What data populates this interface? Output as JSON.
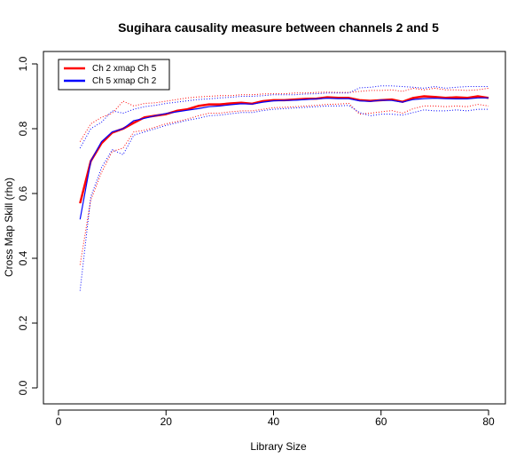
{
  "chart_data": {
    "type": "line",
    "title": "Sugihara causality measure between channels  2 and 5",
    "xlabel": "Library Size",
    "ylabel": "Cross Map Skill (rho)",
    "xlim": [
      0,
      80
    ],
    "ylim": [
      0,
      1
    ],
    "xticks": [
      "0",
      "20",
      "40",
      "60",
      "80"
    ],
    "yticks": [
      "0.0",
      "0.2",
      "0.4",
      "0.6",
      "0.8",
      "1.0"
    ],
    "grid": false,
    "legend_position": "top-left",
    "x": [
      4,
      6,
      8,
      10,
      12,
      14,
      16,
      18,
      20,
      22,
      24,
      26,
      28,
      30,
      32,
      34,
      36,
      38,
      40,
      42,
      44,
      46,
      48,
      50,
      52,
      54,
      56,
      58,
      60,
      62,
      64,
      66,
      68,
      70,
      72,
      74,
      76,
      78,
      80
    ],
    "series": [
      {
        "name": "Ch 2 xmap Ch 5",
        "color": "#ff0000",
        "style": "solid",
        "values": [
          0.57,
          0.7,
          0.755,
          0.788,
          0.8,
          0.818,
          0.835,
          0.84,
          0.845,
          0.855,
          0.86,
          0.87,
          0.875,
          0.875,
          0.878,
          0.88,
          0.877,
          0.885,
          0.888,
          0.888,
          0.89,
          0.892,
          0.893,
          0.897,
          0.895,
          0.895,
          0.888,
          0.886,
          0.888,
          0.89,
          0.883,
          0.895,
          0.9,
          0.898,
          0.895,
          0.897,
          0.895,
          0.9,
          0.895
        ]
      },
      {
        "name": "Ch 5  xmap Ch 2",
        "color": "#0000ff",
        "style": "solid",
        "values": [
          0.52,
          0.7,
          0.76,
          0.79,
          0.8,
          0.825,
          0.832,
          0.84,
          0.847,
          0.852,
          0.857,
          0.862,
          0.868,
          0.87,
          0.874,
          0.877,
          0.876,
          0.882,
          0.886,
          0.887,
          0.888,
          0.89,
          0.892,
          0.894,
          0.893,
          0.893,
          0.886,
          0.884,
          0.888,
          0.887,
          0.882,
          0.89,
          0.893,
          0.894,
          0.893,
          0.892,
          0.892,
          0.895,
          0.895
        ]
      },
      {
        "name": "Ch 2 xmap Ch 5 upper",
        "color": "#ff0000",
        "style": "dotted",
        "values": [
          0.76,
          0.815,
          0.835,
          0.848,
          0.885,
          0.87,
          0.878,
          0.88,
          0.885,
          0.89,
          0.895,
          0.898,
          0.9,
          0.902,
          0.902,
          0.905,
          0.905,
          0.907,
          0.908,
          0.908,
          0.91,
          0.91,
          0.912,
          0.913,
          0.912,
          0.912,
          0.915,
          0.918,
          0.918,
          0.92,
          0.915,
          0.925,
          0.92,
          0.925,
          0.92,
          0.92,
          0.918,
          0.92,
          0.925
        ]
      },
      {
        "name": "Ch 2 xmap Ch 5 lower",
        "color": "#ff0000",
        "style": "dotted",
        "values": [
          0.38,
          0.58,
          0.665,
          0.73,
          0.74,
          0.79,
          0.795,
          0.805,
          0.815,
          0.822,
          0.83,
          0.84,
          0.848,
          0.848,
          0.852,
          0.855,
          0.855,
          0.86,
          0.865,
          0.866,
          0.868,
          0.87,
          0.872,
          0.875,
          0.876,
          0.878,
          0.845,
          0.848,
          0.852,
          0.856,
          0.848,
          0.862,
          0.87,
          0.87,
          0.868,
          0.87,
          0.868,
          0.875,
          0.87
        ]
      },
      {
        "name": "Ch 5 xmap Ch 2 upper",
        "color": "#0000ff",
        "style": "dotted",
        "values": [
          0.74,
          0.8,
          0.82,
          0.855,
          0.848,
          0.86,
          0.868,
          0.872,
          0.878,
          0.882,
          0.886,
          0.89,
          0.892,
          0.895,
          0.897,
          0.9,
          0.9,
          0.902,
          0.905,
          0.905,
          0.905,
          0.907,
          0.908,
          0.91,
          0.91,
          0.91,
          0.926,
          0.928,
          0.932,
          0.932,
          0.93,
          0.928,
          0.925,
          0.93,
          0.925,
          0.928,
          0.93,
          0.93,
          0.93
        ]
      },
      {
        "name": "Ch 5 xmap Ch 2 lower",
        "color": "#0000ff",
        "style": "dotted",
        "values": [
          0.3,
          0.59,
          0.68,
          0.735,
          0.72,
          0.78,
          0.79,
          0.8,
          0.81,
          0.818,
          0.826,
          0.832,
          0.84,
          0.842,
          0.846,
          0.85,
          0.85,
          0.856,
          0.86,
          0.862,
          0.864,
          0.866,
          0.868,
          0.87,
          0.87,
          0.872,
          0.85,
          0.84,
          0.845,
          0.845,
          0.842,
          0.85,
          0.858,
          0.855,
          0.855,
          0.858,
          0.855,
          0.86,
          0.86
        ]
      }
    ]
  }
}
